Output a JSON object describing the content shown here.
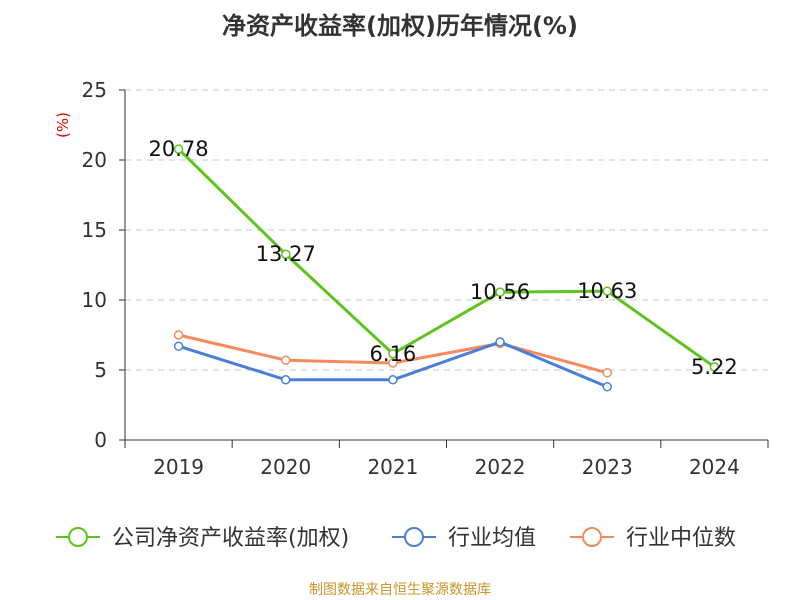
{
  "title": "净资产收益率(加权)历年情况(%)",
  "footer": "制图数据来自恒生聚源数据库",
  "chart_data": {
    "type": "line",
    "title": "净资产收益率(加权)历年情况(%)",
    "ylabel": "(%)",
    "categories": [
      "2019",
      "2020",
      "2021",
      "2022",
      "2023",
      "2024"
    ],
    "ylim": [
      0,
      25
    ],
    "yticks": [
      0,
      5,
      10,
      15,
      20,
      25
    ],
    "grid": true,
    "legend_position": "bottom",
    "series": [
      {
        "name": "公司净资产收益率(加权)",
        "color": "#5cc41c",
        "values": [
          20.78,
          13.27,
          6.16,
          10.56,
          10.63,
          5.22
        ],
        "labels": [
          "20.78",
          "13.27",
          "6.16",
          "10.56",
          "10.63",
          "5.22"
        ]
      },
      {
        "name": "行业均值",
        "color": "#4a7fd6",
        "values": [
          6.7,
          4.3,
          4.3,
          7.0,
          3.8,
          null
        ]
      },
      {
        "name": "行业中位数",
        "color": "#f48b5c",
        "values": [
          7.5,
          5.7,
          5.5,
          6.9,
          4.8,
          null
        ]
      }
    ]
  }
}
